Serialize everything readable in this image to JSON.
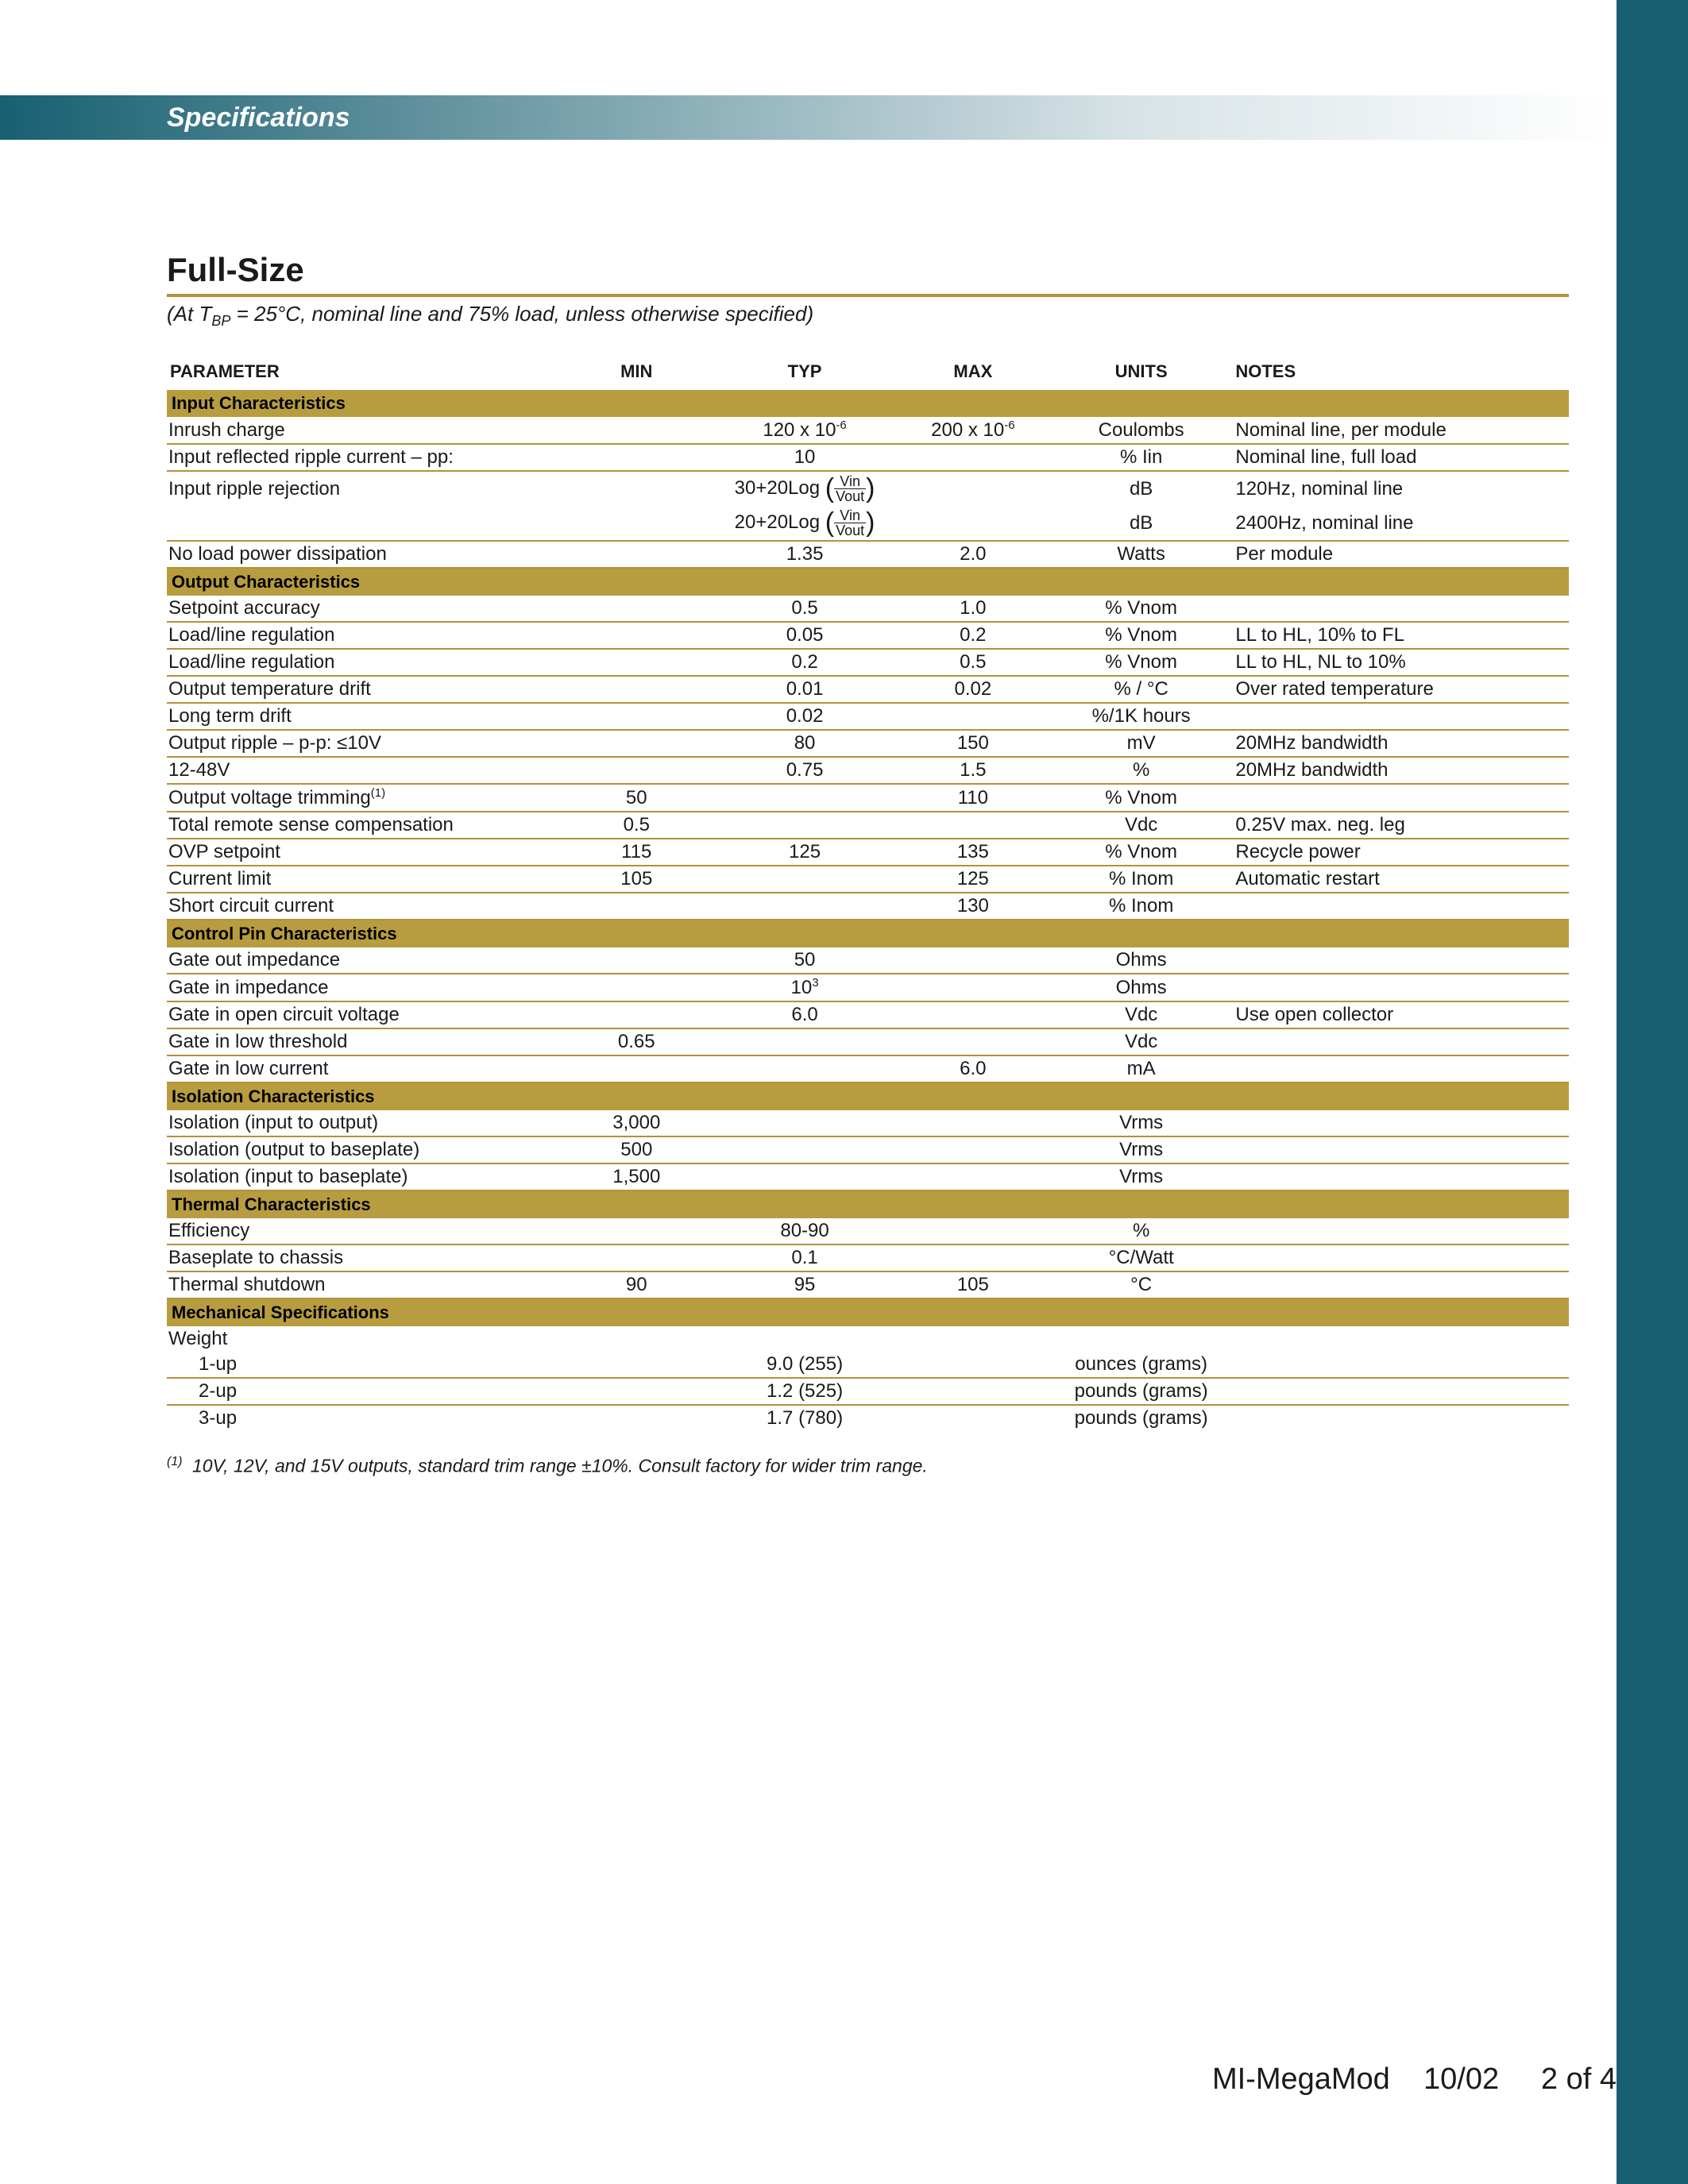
{
  "colors": {
    "teal": "#186071",
    "gold": "#b79d3f",
    "gold_rule": "#b4903b",
    "row_rule": "#b4903b",
    "header_text_teal": "#186071",
    "body_text": "#1a1a1a",
    "header_grad_start": "#186071",
    "header_grad_end": "#d8e3e7"
  },
  "header": {
    "title": "Specifications"
  },
  "section": {
    "title": "Full-Size",
    "conditions": "(At T_BP = 25°C, nominal line and 75% load, unless otherwise specified)"
  },
  "columns": [
    "PARAMETER",
    "MIN",
    "TYP",
    "MAX",
    "UNITS",
    "NOTES"
  ],
  "column_widths": [
    "28%",
    "11%",
    "13%",
    "11%",
    "13%",
    "24%"
  ],
  "groups": [
    {
      "name": "Input Characteristics",
      "rows": [
        {
          "param": "Inrush charge",
          "min": "",
          "typ": "120 x 10⁻⁶",
          "max": "200 x 10⁻⁶",
          "units": "Coulombs",
          "notes": "Nominal line, per module"
        },
        {
          "param": "Input reflected ripple current – pp:",
          "min": "",
          "typ": "10",
          "max": "",
          "units": "% Iin",
          "notes": "Nominal line, full load"
        },
        {
          "param": "Input ripple rejection",
          "min": "",
          "typ": "FRAC1",
          "max": "",
          "units": "dB",
          "notes": "120Hz, nominal line",
          "no_rule": true
        },
        {
          "param": "",
          "min": "",
          "typ": "FRAC2",
          "max": "",
          "units": "dB",
          "notes": "2400Hz, nominal line"
        },
        {
          "param": "No load power dissipation",
          "min": "",
          "typ": "1.35",
          "max": "2.0",
          "units": "Watts",
          "notes": "Per module"
        }
      ]
    },
    {
      "name": "Output Characteristics",
      "rows": [
        {
          "param": "Setpoint accuracy",
          "min": "",
          "typ": "0.5",
          "max": "1.0",
          "units": "% Vnom",
          "notes": ""
        },
        {
          "param": "Load/line regulation",
          "min": "",
          "typ": "0.05",
          "max": "0.2",
          "units": "% Vnom",
          "notes": "LL to HL, 10% to FL"
        },
        {
          "param": "Load/line regulation",
          "min": "",
          "typ": "0.2",
          "max": "0.5",
          "units": "% Vnom",
          "notes": "LL to HL, NL to 10%"
        },
        {
          "param": "Output temperature drift",
          "min": "",
          "typ": "0.01",
          "max": "0.02",
          "units": "% / °C",
          "notes": "Over rated temperature"
        },
        {
          "param": "Long term drift",
          "min": "",
          "typ": "0.02",
          "max": "",
          "units": "%/1K hours",
          "notes": ""
        },
        {
          "param": "Output ripple – p-p: ≤10V",
          "min": "",
          "typ": "80",
          "max": "150",
          "units": "mV",
          "notes": "20MHz bandwidth"
        },
        {
          "param": "12-48V",
          "min": "",
          "typ": "0.75",
          "max": "1.5",
          "units": "%",
          "notes": "20MHz bandwidth"
        },
        {
          "param": "Output voltage trimming⁽¹⁾",
          "min": "50",
          "typ": "",
          "max": "110",
          "units": "% Vnom",
          "notes": ""
        },
        {
          "param": "Total remote sense compensation",
          "min": "0.5",
          "typ": "",
          "max": "",
          "units": "Vdc",
          "notes": "0.25V max. neg. leg"
        },
        {
          "param": "OVP setpoint",
          "min": "115",
          "typ": "125",
          "max": "135",
          "units": "% Vnom",
          "notes": "Recycle power"
        },
        {
          "param": "Current limit",
          "min": "105",
          "typ": "",
          "max": "125",
          "units": "% Inom",
          "notes": "Automatic restart"
        },
        {
          "param": "Short circuit current",
          "min": "",
          "typ": "",
          "max": "130",
          "units": "% Inom",
          "notes": ""
        }
      ]
    },
    {
      "name": "Control Pin Characteristics",
      "rows": [
        {
          "param": "Gate out impedance",
          "min": "",
          "typ": "50",
          "max": "",
          "units": "Ohms",
          "notes": ""
        },
        {
          "param": "Gate in impedance",
          "min": "",
          "typ": "10³",
          "max": "",
          "units": "Ohms",
          "notes": ""
        },
        {
          "param": "Gate in open circuit voltage",
          "min": "",
          "typ": "6.0",
          "max": "",
          "units": "Vdc",
          "notes": "Use open collector"
        },
        {
          "param": "Gate in low threshold",
          "min": "0.65",
          "typ": "",
          "max": "",
          "units": "Vdc",
          "notes": ""
        },
        {
          "param": "Gate in low current",
          "min": "",
          "typ": "",
          "max": "6.0",
          "units": "mA",
          "notes": ""
        }
      ]
    },
    {
      "name": "Isolation Characteristics",
      "rows": [
        {
          "param": "Isolation (input to output)",
          "min": "3,000",
          "typ": "",
          "max": "",
          "units": "Vrms",
          "notes": ""
        },
        {
          "param": "Isolation (output to baseplate)",
          "min": "500",
          "typ": "",
          "max": "",
          "units": "Vrms",
          "notes": ""
        },
        {
          "param": "Isolation (input to baseplate)",
          "min": "1,500",
          "typ": "",
          "max": "",
          "units": "Vrms",
          "notes": ""
        }
      ]
    },
    {
      "name": "Thermal Characteristics",
      "rows": [
        {
          "param": "Efficiency",
          "min": "",
          "typ": "80-90",
          "max": "",
          "units": "%",
          "notes": ""
        },
        {
          "param": "Baseplate to chassis",
          "min": "",
          "typ": "0.1",
          "max": "",
          "units": "°C/Watt",
          "notes": ""
        },
        {
          "param": "Thermal shutdown",
          "min": "90",
          "typ": "95",
          "max": "105",
          "units": "°C",
          "notes": ""
        }
      ]
    },
    {
      "name": "Mechanical Specifications",
      "rows": [
        {
          "param": "Weight",
          "min": "",
          "typ": "",
          "max": "",
          "units": "",
          "notes": "",
          "no_rule": true
        },
        {
          "param": "1-up",
          "indent": true,
          "min": "",
          "typ": "9.0 (255)",
          "max": "",
          "units": "ounces (grams)",
          "notes": ""
        },
        {
          "param": "2-up",
          "indent": true,
          "min": "",
          "typ": "1.2 (525)",
          "max": "",
          "units": "pounds (grams)",
          "notes": ""
        },
        {
          "param": "3-up",
          "indent": true,
          "min": "",
          "typ": "1.7 (780)",
          "max": "",
          "units": "pounds (grams)",
          "notes": "",
          "no_rule": true
        }
      ]
    }
  ],
  "footnote": "10V, 12V, and 15V outputs, standard trim range ±10%. Consult factory for wider trim range.",
  "footnote_marker": "(1)",
  "footer": {
    "doc": "MI-MegaMod",
    "date": "10/02",
    "page": "2 of 4"
  }
}
